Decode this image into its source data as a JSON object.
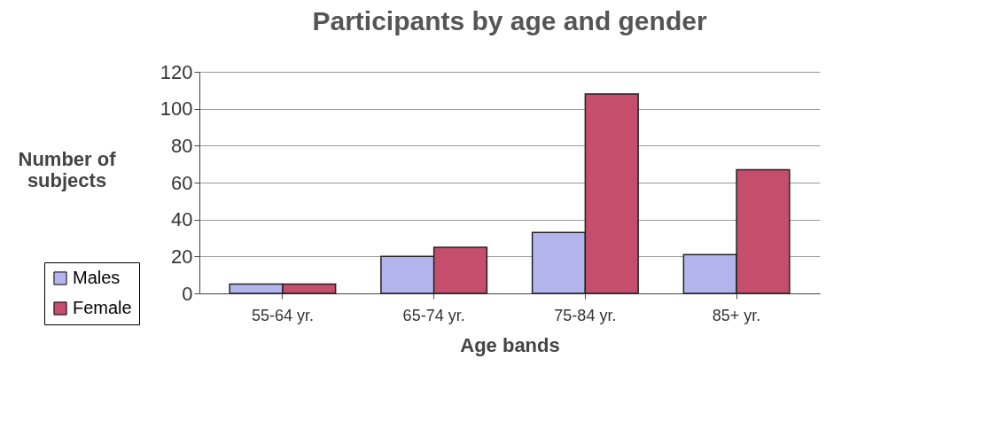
{
  "chart_data": {
    "type": "bar",
    "title": "Participants by age and gender",
    "xlabel": "Age bands",
    "ylabel": "Number of subjects",
    "categories": [
      "55-64 yr.",
      "65-74 yr.",
      "75-84 yr.",
      "85+ yr."
    ],
    "series": [
      {
        "name": "Males",
        "color": "#b4b4ee",
        "values": [
          5,
          20,
          33,
          21
        ]
      },
      {
        "name": "Female",
        "color": "#c44e6c",
        "values": [
          5,
          25,
          108,
          67
        ]
      }
    ],
    "ylim": [
      0,
      120
    ],
    "yticks": [
      0,
      20,
      40,
      60,
      80,
      100,
      120
    ],
    "grid": "y",
    "legend": "bottom left"
  }
}
